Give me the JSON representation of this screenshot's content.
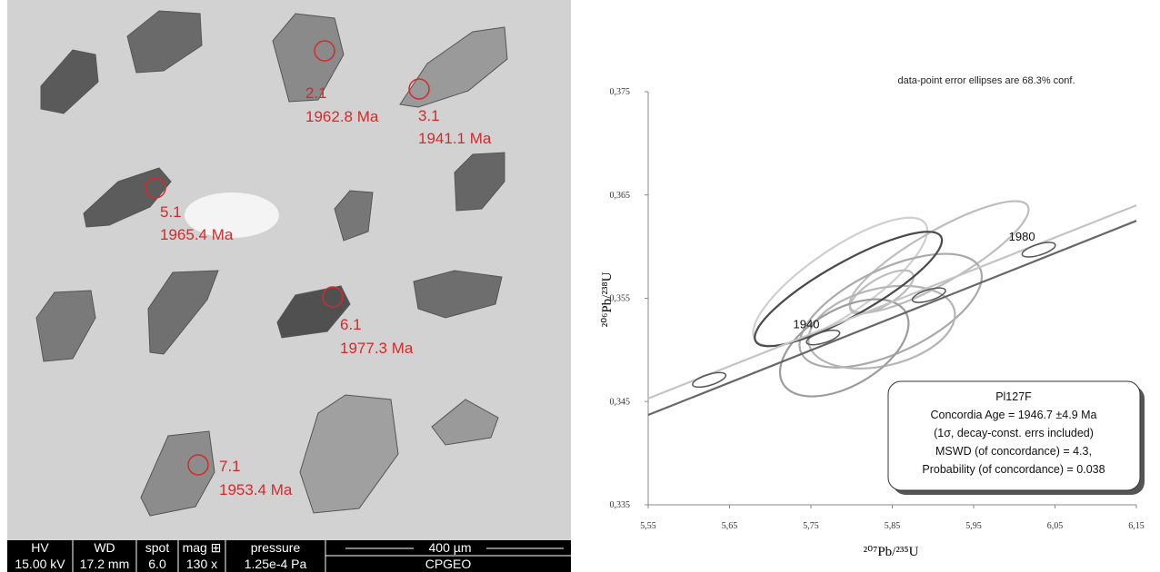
{
  "image": {
    "spots": [
      {
        "id": "2.1",
        "age": "1962.8 Ma"
      },
      {
        "id": "3.1",
        "age": "1941.1 Ma"
      },
      {
        "id": "5.1",
        "age": "1965.4 Ma"
      },
      {
        "id": "6.1",
        "age": "1977.3 Ma"
      },
      {
        "id": "7.1",
        "age": "1953.4 Ma"
      }
    ],
    "info_bar": {
      "headers": [
        "HV",
        "WD",
        "spot",
        "mag ⊞",
        "pressure"
      ],
      "values": [
        "15.00 kV",
        "17.2 mm",
        "6.0",
        "130 x",
        "1.25e-4 Pa"
      ],
      "scale": "400 µm",
      "lab": "CPGEO"
    }
  },
  "chart_data": {
    "type": "concordia",
    "annotation": "data-point error ellipses are 68.3% conf.",
    "x_label": "²⁰⁷Pb/²³⁵U",
    "y_label": "²⁰⁶Pb/²³⁸U",
    "xlim": [
      5.55,
      6.15
    ],
    "ylim": [
      0.335,
      0.375
    ],
    "xticks": [
      {
        "value": 5.55,
        "label": "5,55"
      },
      {
        "value": 5.65,
        "label": "5,65"
      },
      {
        "value": 5.75,
        "label": "5,75"
      },
      {
        "value": 5.85,
        "label": "5,85"
      },
      {
        "value": 5.95,
        "label": "5,95"
      },
      {
        "value": 6.05,
        "label": "6,05"
      },
      {
        "value": 6.15,
        "label": "6,15"
      }
    ],
    "yticks": [
      {
        "value": 0.335,
        "label": "0,335"
      },
      {
        "value": 0.345,
        "label": "0,345"
      },
      {
        "value": 0.355,
        "label": "0,355"
      },
      {
        "value": 0.365,
        "label": "0,365"
      },
      {
        "value": 0.375,
        "label": "0,375"
      }
    ],
    "series": [
      {
        "color": "#c4c4c4",
        "x": [
          5.55,
          6.15
        ],
        "values": [
          0.3453,
          0.364
        ]
      },
      {
        "color": "#666666",
        "x": [
          5.55,
          6.15
        ],
        "values": [
          0.3437,
          0.3625
        ]
      }
    ],
    "age_markers": [
      {
        "x": 5.625,
        "y": 0.3471
      },
      {
        "label": "1940",
        "x": 5.765,
        "y": 0.3512
      },
      {
        "x": 5.895,
        "y": 0.3553
      },
      {
        "label": "1980",
        "x": 6.03,
        "y": 0.3597
      }
    ],
    "ellipses": [
      {
        "cx": 5.786,
        "cy": 0.3566,
        "sx": 0.107,
        "sy": 0.0062,
        "rho": 0.8,
        "color": "#cfcfcf"
      },
      {
        "cx": 5.9076,
        "cy": 0.359,
        "sx": 0.11,
        "sy": 0.0054,
        "rho": 0.85,
        "color": "#bdbdbd"
      },
      {
        "cx": 5.837,
        "cy": 0.3556,
        "sx": 0.039,
        "sy": 0.0021,
        "rho": 0.7,
        "color": "#bdbdbd"
      },
      {
        "cx": 5.848,
        "cy": 0.3538,
        "sx": 0.112,
        "sy": 0.0055,
        "rho": 0.6,
        "color": "#aaaaaa"
      },
      {
        "cx": 5.837,
        "cy": 0.3522,
        "sx": 0.09,
        "sy": 0.004,
        "rho": 0.3,
        "color": "#b5b5b5"
      },
      {
        "cx": 5.791,
        "cy": 0.3502,
        "sx": 0.079,
        "sy": 0.0047,
        "rho": 0.5,
        "color": "#9c9c9c"
      },
      {
        "cx": 5.796,
        "cy": 0.3559,
        "sx": 0.115,
        "sy": 0.00554,
        "rho": 0.85,
        "color": "#4a4a4a"
      }
    ],
    "legend_lines": [
      "Pl127F",
      "Concordia Age = 1946.7 ±4.9 Ma",
      "(1σ, decay-const. errs included)",
      "MSWD (of concordance) = 4.3,",
      "Probability (of concordance) = 0.038"
    ]
  }
}
